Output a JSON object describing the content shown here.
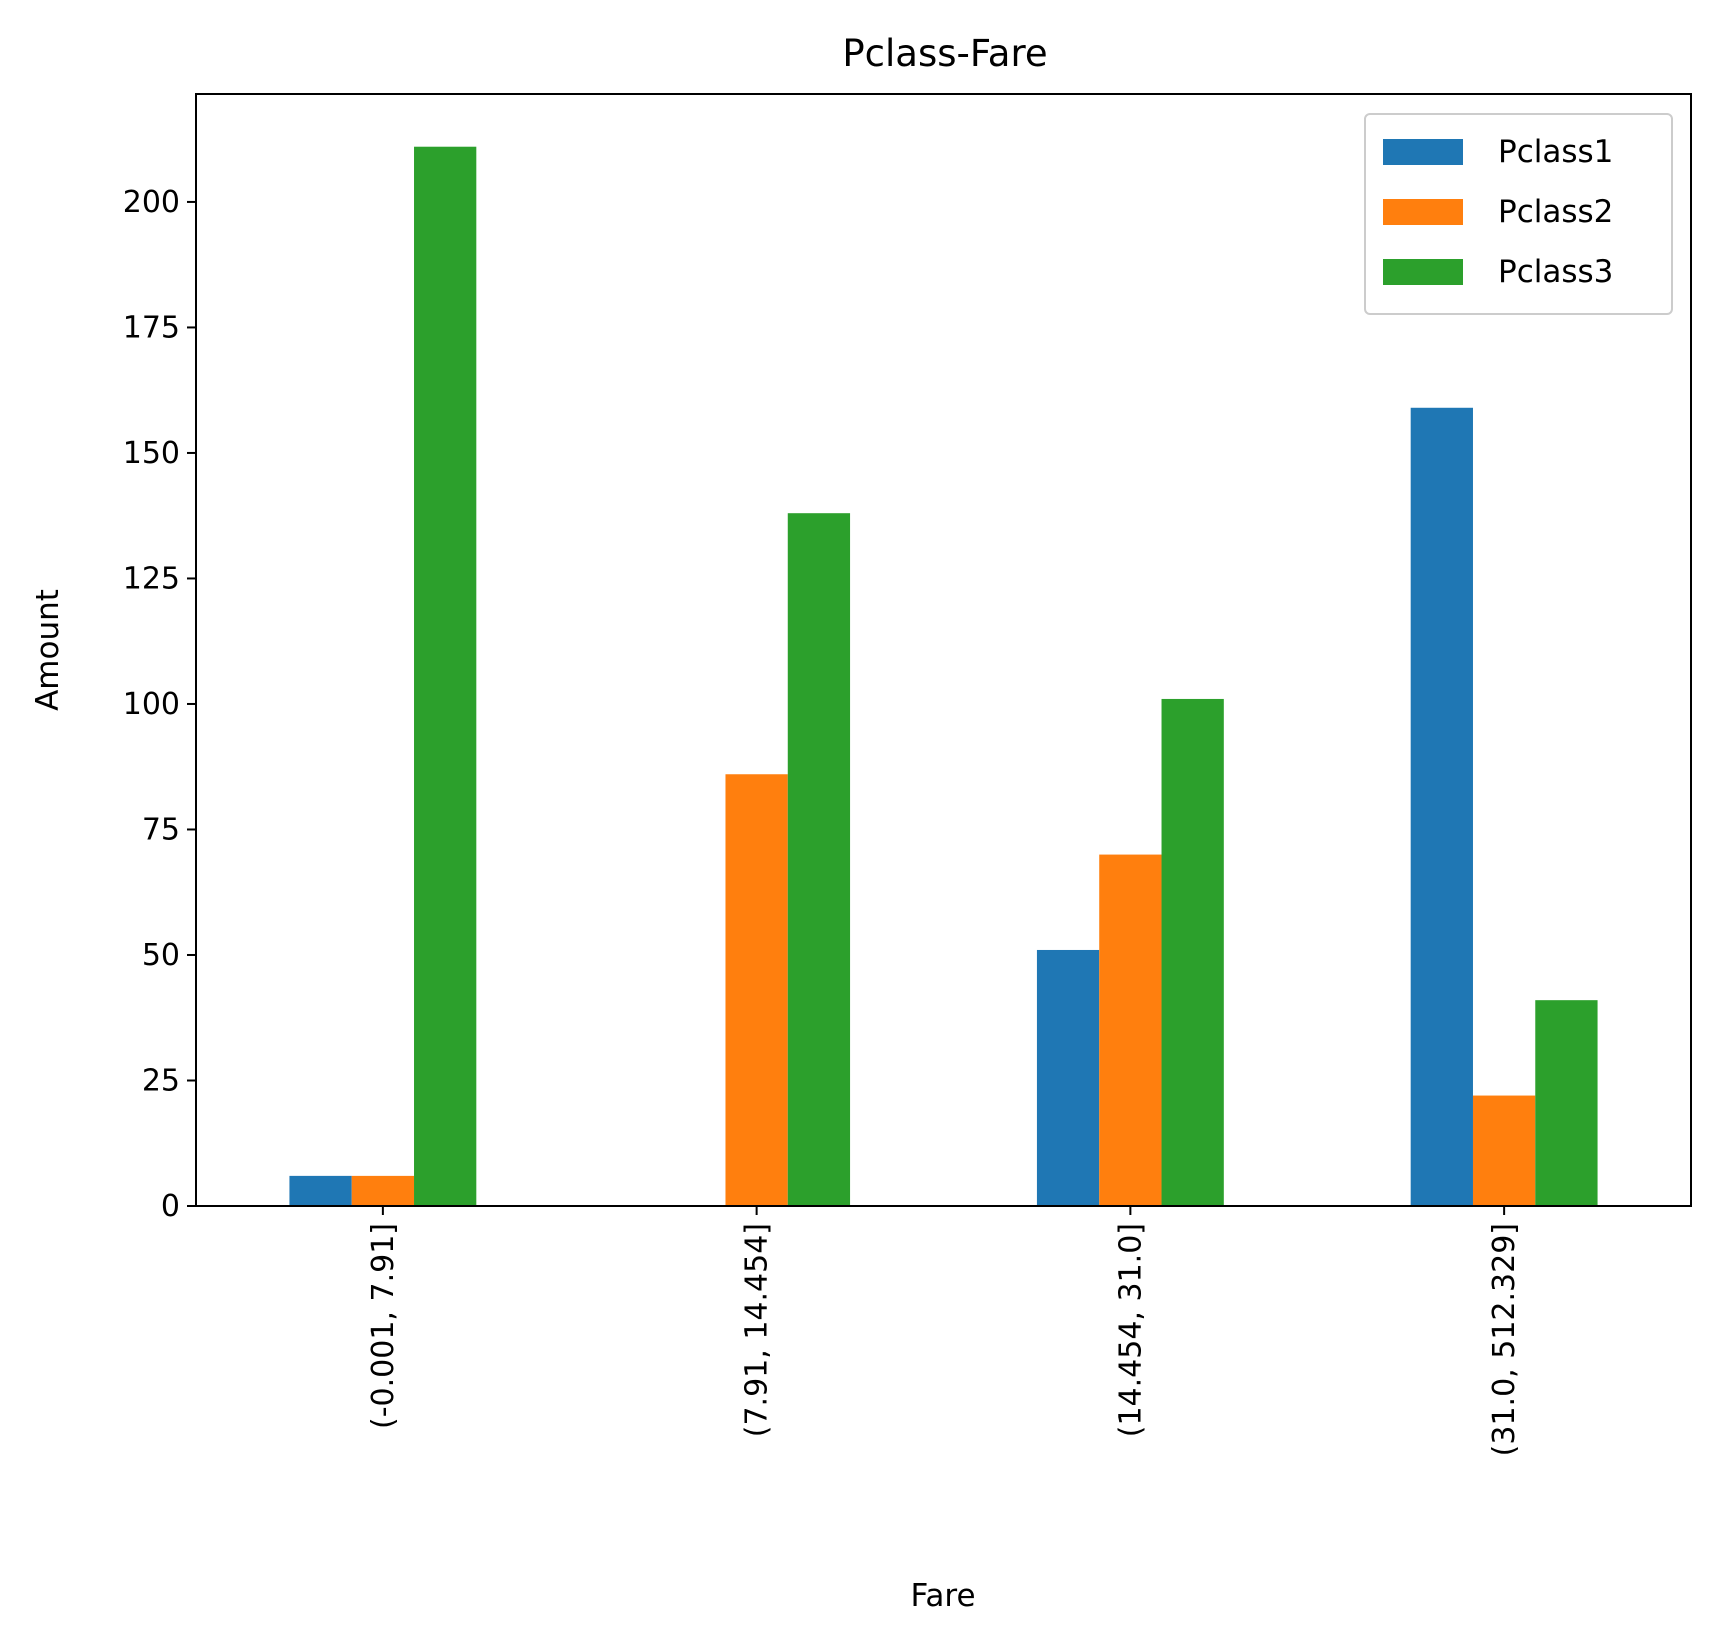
{
  "chart_data": {
    "type": "bar",
    "title": "Pclass-Fare",
    "xlabel": "Fare",
    "ylabel": "Amount",
    "categories": [
      "(-0.001, 7.91]",
      "(7.91, 14.454]",
      "(14.454, 31.0]",
      "(31.0, 512.329]"
    ],
    "series": [
      {
        "name": "Pclass1",
        "color": "#1f77b4",
        "values": [
          6,
          0,
          51,
          159
        ]
      },
      {
        "name": "Pclass2",
        "color": "#ff7f0e",
        "values": [
          6,
          86,
          70,
          22
        ]
      },
      {
        "name": "Pclass3",
        "color": "#2ca02c",
        "values": [
          211,
          138,
          101,
          41
        ]
      }
    ],
    "ylim": [
      0,
      221.5
    ],
    "yticks": [
      0,
      25,
      50,
      75,
      100,
      125,
      150,
      175,
      200
    ],
    "xtick_rotation": "vertical",
    "grid": false,
    "legend_position": "top-right"
  }
}
